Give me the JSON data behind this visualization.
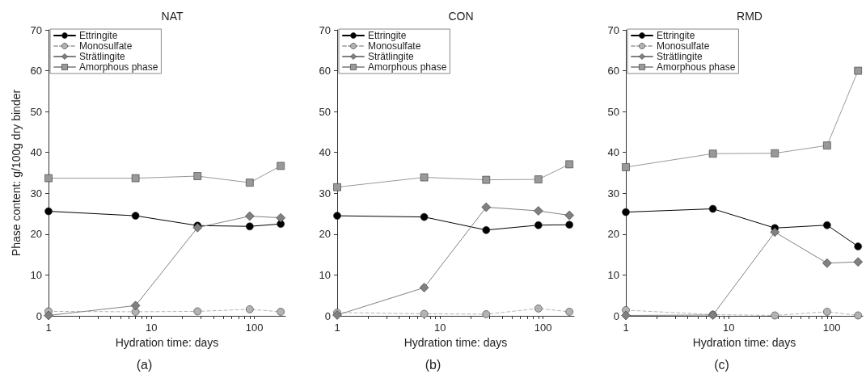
{
  "chart_data": [
    {
      "type": "line",
      "title": "NAT",
      "xlabel": "Hydration time: days",
      "ylabel": "Phase content: g/100g dry binder",
      "annotations": [
        "(a)"
      ],
      "log": "x",
      "legend": "top left",
      "grid": false,
      "x": [
        1,
        7,
        28,
        90,
        180
      ],
      "xlim": [
        1,
        200
      ],
      "xticks": [
        1,
        {
          "value": 2,
          "label": null
        },
        {
          "value": 3,
          "label": null
        },
        {
          "value": 4,
          "label": null
        },
        {
          "value": 5,
          "label": null
        },
        {
          "value": 6,
          "label": null
        },
        {
          "value": 7,
          "label": null
        },
        {
          "value": 8,
          "label": null
        },
        {
          "value": 9,
          "label": null
        },
        10,
        {
          "value": 20,
          "label": null
        },
        {
          "value": 30,
          "label": null
        },
        {
          "value": 40,
          "label": null
        },
        {
          "value": 50,
          "label": null
        },
        {
          "value": 60,
          "label": null
        },
        {
          "value": 70,
          "label": null
        },
        {
          "value": 80,
          "label": null
        },
        {
          "value": 90,
          "label": null
        },
        100
      ],
      "ylim": [
        0,
        70
      ],
      "yticks": [
        0,
        10,
        20,
        30,
        40,
        50,
        60,
        70
      ],
      "series": [
        {
          "name": "Ettringite",
          "color": "#000000",
          "marker": "circle",
          "line_style": "solid",
          "values": [
            25.6,
            24.5,
            22.1,
            21.9,
            22.5
          ]
        },
        {
          "name": "Monosulfate",
          "color": "#b3b3b3",
          "marker": "circle",
          "line_style": "dashed",
          "values": [
            1.1,
            1.0,
            1.1,
            1.6,
            1.0
          ]
        },
        {
          "name": "Strätlingite",
          "color": "#808080",
          "marker": "diamond",
          "line_style": "solid",
          "values": [
            0.1,
            2.5,
            21.6,
            24.4,
            24.0
          ]
        },
        {
          "name": "Amorphous phase",
          "color": "#999999",
          "marker": "square",
          "line_style": "solid",
          "values": [
            33.7,
            33.7,
            34.2,
            32.6,
            36.7
          ]
        }
      ]
    },
    {
      "type": "line",
      "title": "CON",
      "xlabel": "Hydration time: days",
      "annotations": [
        "(b)"
      ],
      "log": "x",
      "legend": "top left",
      "grid": false,
      "x": [
        1,
        7,
        28,
        90,
        180
      ],
      "xlim": [
        1,
        200
      ],
      "xticks": [
        1,
        {
          "value": 2,
          "label": null
        },
        {
          "value": 3,
          "label": null
        },
        {
          "value": 4,
          "label": null
        },
        {
          "value": 5,
          "label": null
        },
        {
          "value": 6,
          "label": null
        },
        {
          "value": 7,
          "label": null
        },
        {
          "value": 8,
          "label": null
        },
        {
          "value": 9,
          "label": null
        },
        10,
        {
          "value": 20,
          "label": null
        },
        {
          "value": 30,
          "label": null
        },
        {
          "value": 40,
          "label": null
        },
        {
          "value": 50,
          "label": null
        },
        {
          "value": 60,
          "label": null
        },
        {
          "value": 70,
          "label": null
        },
        {
          "value": 80,
          "label": null
        },
        {
          "value": 90,
          "label": null
        },
        100
      ],
      "ylim": [
        0,
        70
      ],
      "yticks": [
        0,
        10,
        20,
        30,
        40,
        50,
        60,
        70
      ],
      "series": [
        {
          "name": "Ettringite",
          "color": "#000000",
          "marker": "circle",
          "line_style": "solid",
          "values": [
            24.5,
            24.2,
            21.0,
            22.2,
            22.3
          ]
        },
        {
          "name": "Monosulfate",
          "color": "#b3b3b3",
          "marker": "circle",
          "line_style": "dashed",
          "values": [
            0.8,
            0.5,
            0.4,
            1.8,
            1.0
          ]
        },
        {
          "name": "Strätlingite",
          "color": "#808080",
          "marker": "diamond",
          "line_style": "solid",
          "values": [
            0.2,
            6.9,
            26.6,
            25.7,
            24.6
          ]
        },
        {
          "name": "Amorphous phase",
          "color": "#999999",
          "marker": "square",
          "line_style": "solid",
          "values": [
            31.5,
            33.9,
            33.3,
            33.4,
            37.1
          ]
        }
      ]
    },
    {
      "type": "line",
      "title": "RMD",
      "xlabel": "Hydration time: days",
      "annotations": [
        "(c)"
      ],
      "log": "x",
      "legend": "top left",
      "grid": false,
      "x": [
        1,
        7,
        28,
        90,
        180
      ],
      "xlim": [
        1,
        200
      ],
      "xticks": [
        1,
        {
          "value": 2,
          "label": null
        },
        {
          "value": 3,
          "label": null
        },
        {
          "value": 4,
          "label": null
        },
        {
          "value": 5,
          "label": null
        },
        {
          "value": 6,
          "label": null
        },
        {
          "value": 7,
          "label": null
        },
        {
          "value": 8,
          "label": null
        },
        {
          "value": 9,
          "label": null
        },
        10,
        {
          "value": 20,
          "label": null
        },
        {
          "value": 30,
          "label": null
        },
        {
          "value": 40,
          "label": null
        },
        {
          "value": 50,
          "label": null
        },
        {
          "value": 60,
          "label": null
        },
        {
          "value": 70,
          "label": null
        },
        {
          "value": 80,
          "label": null
        },
        {
          "value": 90,
          "label": null
        },
        100
      ],
      "ylim": [
        0,
        70
      ],
      "yticks": [
        0,
        10,
        20,
        30,
        40,
        50,
        60,
        70
      ],
      "series": [
        {
          "name": "Ettringite",
          "color": "#000000",
          "marker": "circle",
          "line_style": "solid",
          "values": [
            25.4,
            26.2,
            21.5,
            22.2,
            17.0
          ]
        },
        {
          "name": "Monosulfate",
          "color": "#b3b3b3",
          "marker": "circle",
          "line_style": "dashed",
          "values": [
            1.4,
            0.3,
            0.1,
            1.0,
            0.1
          ]
        },
        {
          "name": "Strätlingite",
          "color": "#808080",
          "marker": "diamond",
          "line_style": "solid",
          "values": [
            0.1,
            0.2,
            20.5,
            12.9,
            13.2
          ]
        },
        {
          "name": "Amorphous phase",
          "color": "#999999",
          "marker": "square",
          "line_style": "solid",
          "values": [
            36.4,
            39.7,
            39.8,
            41.7,
            60.0
          ]
        }
      ]
    }
  ]
}
